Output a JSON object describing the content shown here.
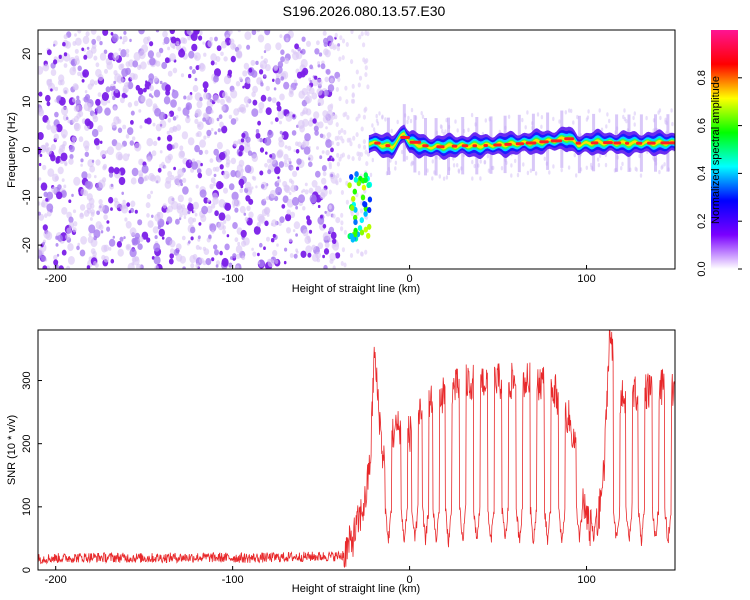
{
  "title": "S196.2026.080.13.57.E30",
  "chart_data": [
    {
      "type": "heatmap",
      "name": "spectrogram",
      "xlabel": "Height of straight line (km)",
      "ylabel": "Frequency (Hz)",
      "xlim": [
        -210,
        150
      ],
      "ylim": [
        -25,
        25
      ],
      "xticks": [
        -200,
        -100,
        0,
        100
      ],
      "xtick_labels": [
        "-200",
        "-100",
        "0",
        "100"
      ],
      "yticks": [
        -20,
        -10,
        0,
        10,
        20
      ],
      "ytick_labels": [
        "-20",
        "-10",
        "0",
        "10",
        "20"
      ],
      "noise_region_x": [
        -210,
        -40
      ],
      "gap_region_x": [
        -22,
        -4
      ],
      "signal_start_x": -23,
      "signal_trace": [
        {
          "x": -22,
          "y": 1.5
        },
        {
          "x": -10,
          "y": 0.5
        },
        {
          "x": -3,
          "y": 3.5
        },
        {
          "x": 0,
          "y": 1.5
        },
        {
          "x": 10,
          "y": 0.5
        },
        {
          "x": 30,
          "y": 0.8
        },
        {
          "x": 40,
          "y": 0.8
        },
        {
          "x": 60,
          "y": 1.2
        },
        {
          "x": 80,
          "y": 1.8
        },
        {
          "x": 90,
          "y": 2.4
        },
        {
          "x": 95,
          "y": 1.0
        },
        {
          "x": 105,
          "y": 1.5
        },
        {
          "x": 120,
          "y": 1.3
        },
        {
          "x": 150,
          "y": 1.4
        }
      ],
      "colorbar": {
        "label": "Normalized spectral amplitude",
        "ticks": [
          0.0,
          0.2,
          0.4,
          0.6,
          0.8
        ],
        "tick_labels": [
          "0.0",
          "0.2",
          "0.4",
          "0.6",
          "0.8"
        ],
        "range": [
          0,
          1
        ],
        "colors": [
          "#ffffff",
          "#7a00ff",
          "#0000ff",
          "#00ffff",
          "#00ff00",
          "#ffff00",
          "#ff0000",
          "#ff1493"
        ]
      }
    },
    {
      "type": "line",
      "name": "snr",
      "xlabel": "Height of straight line (km)",
      "ylabel": "SNR (10 * v/v)",
      "xlim": [
        -210,
        150
      ],
      "ylim": [
        0,
        380
      ],
      "xticks": [
        -200,
        -100,
        0,
        100
      ],
      "xtick_labels": [
        "-200",
        "-100",
        "0",
        "100"
      ],
      "yticks": [
        0,
        100,
        200,
        300
      ],
      "ytick_labels": [
        "0",
        "100",
        "200",
        "300"
      ],
      "line_color": "#e8282a",
      "series": [
        {
          "name": "SNR",
          "points": [
            [
              -210,
              18
            ],
            [
              -180,
              20
            ],
            [
              -150,
              19
            ],
            [
              -120,
              20
            ],
            [
              -90,
              19
            ],
            [
              -60,
              21
            ],
            [
              -38,
              22
            ],
            [
              -32,
              50
            ],
            [
              -25,
              110
            ],
            [
              -22,
              180
            ],
            [
              -20,
              345
            ],
            [
              -15,
              175
            ],
            [
              -10,
              215
            ],
            [
              -5,
              230
            ],
            [
              0,
              215
            ],
            [
              5,
              240
            ],
            [
              10,
              260
            ],
            [
              20,
              280
            ],
            [
              30,
              295
            ],
            [
              40,
              300
            ],
            [
              50,
              298
            ],
            [
              60,
              298
            ],
            [
              70,
              300
            ],
            [
              80,
              295
            ],
            [
              90,
              240
            ],
            [
              95,
              180
            ],
            [
              100,
              80
            ],
            [
              105,
              40
            ],
            [
              110,
              160
            ],
            [
              113,
              380
            ],
            [
              118,
              270
            ],
            [
              130,
              280
            ],
            [
              140,
              290
            ],
            [
              150,
              280
            ]
          ],
          "dips_x": [
            -12,
            -3,
            3,
            9,
            15,
            22,
            30,
            38,
            46,
            54,
            62,
            70,
            78,
            86,
            96,
            104,
            117,
            124,
            131,
            139,
            146
          ],
          "dip_floor": 35
        }
      ]
    }
  ]
}
